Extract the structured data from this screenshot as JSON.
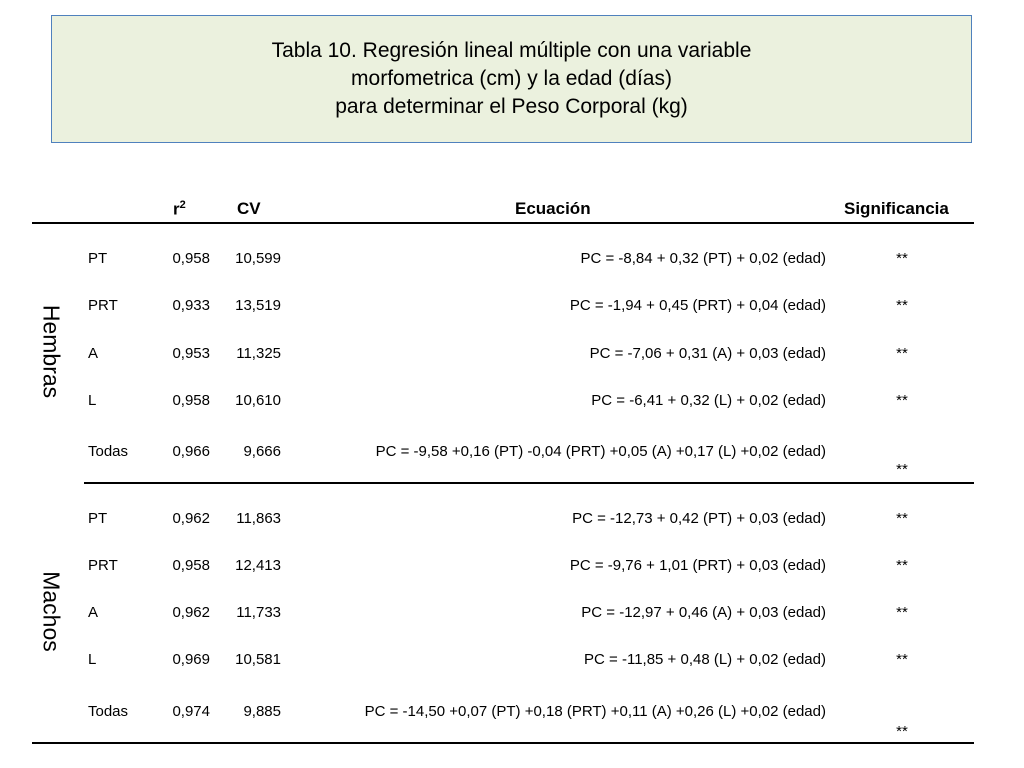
{
  "title": {
    "line1": "Tabla 10. Regresión lineal múltiple con una variable",
    "line2": "morfometrica (cm) y la edad (días)",
    "line3": "para determinar el Peso Corporal (kg)"
  },
  "headers": {
    "r2": "r",
    "r2_sup": "2",
    "cv": "CV",
    "equation": "Ecuación",
    "significance": "Significancia"
  },
  "groups": [
    {
      "label": "Hembras",
      "rows": [
        {
          "var": "PT",
          "r2": "0,958",
          "cv": "10,599",
          "eq": "PC = -8,84 + 0,32 (PT) + 0,02 (edad)",
          "sig": "**"
        },
        {
          "var": "PRT",
          "r2": "0,933",
          "cv": "13,519",
          "eq": "PC = -1,94 + 0,45 (PRT) + 0,04 (edad)",
          "sig": "**"
        },
        {
          "var": "A",
          "r2": "0,953",
          "cv": "11,325",
          "eq": "PC = -7,06 + 0,31 (A) + 0,03 (edad)",
          "sig": "**"
        },
        {
          "var": "L",
          "r2": "0,958",
          "cv": "10,610",
          "eq": "PC = -6,41 + 0,32 (L) + 0,02 (edad)",
          "sig": "**"
        },
        {
          "var": "Todas",
          "r2": "0,966",
          "cv": "9,666",
          "eq": "PC = -9,58 +0,16 (PT) -0,04 (PRT) +0,05 (A) +0,17 (L) +0,02 (edad)",
          "sig": "**"
        }
      ]
    },
    {
      "label": "Machos",
      "rows": [
        {
          "var": "PT",
          "r2": "0,962",
          "cv": "11,863",
          "eq": "PC = -12,73 + 0,42 (PT) + 0,03 (edad)",
          "sig": "**"
        },
        {
          "var": "PRT",
          "r2": "0,958",
          "cv": "12,413",
          "eq": "PC = -9,76 + 1,01 (PRT) + 0,03 (edad)",
          "sig": "**"
        },
        {
          "var": "A",
          "r2": "0,962",
          "cv": "11,733",
          "eq": "PC = -12,97 + 0,46 (A) + 0,03 (edad)",
          "sig": "**"
        },
        {
          "var": "L",
          "r2": "0,969",
          "cv": "10,581",
          "eq": "PC = -11,85 + 0,48 (L) + 0,02 (edad)",
          "sig": "**"
        },
        {
          "var": "Todas",
          "r2": "0,974",
          "cv": "9,885",
          "eq": "PC = -14,50 +0,07 (PT) +0,18 (PRT) +0,11 (A) +0,26 (L) +0,02 (edad)",
          "sig": "**"
        }
      ]
    }
  ]
}
